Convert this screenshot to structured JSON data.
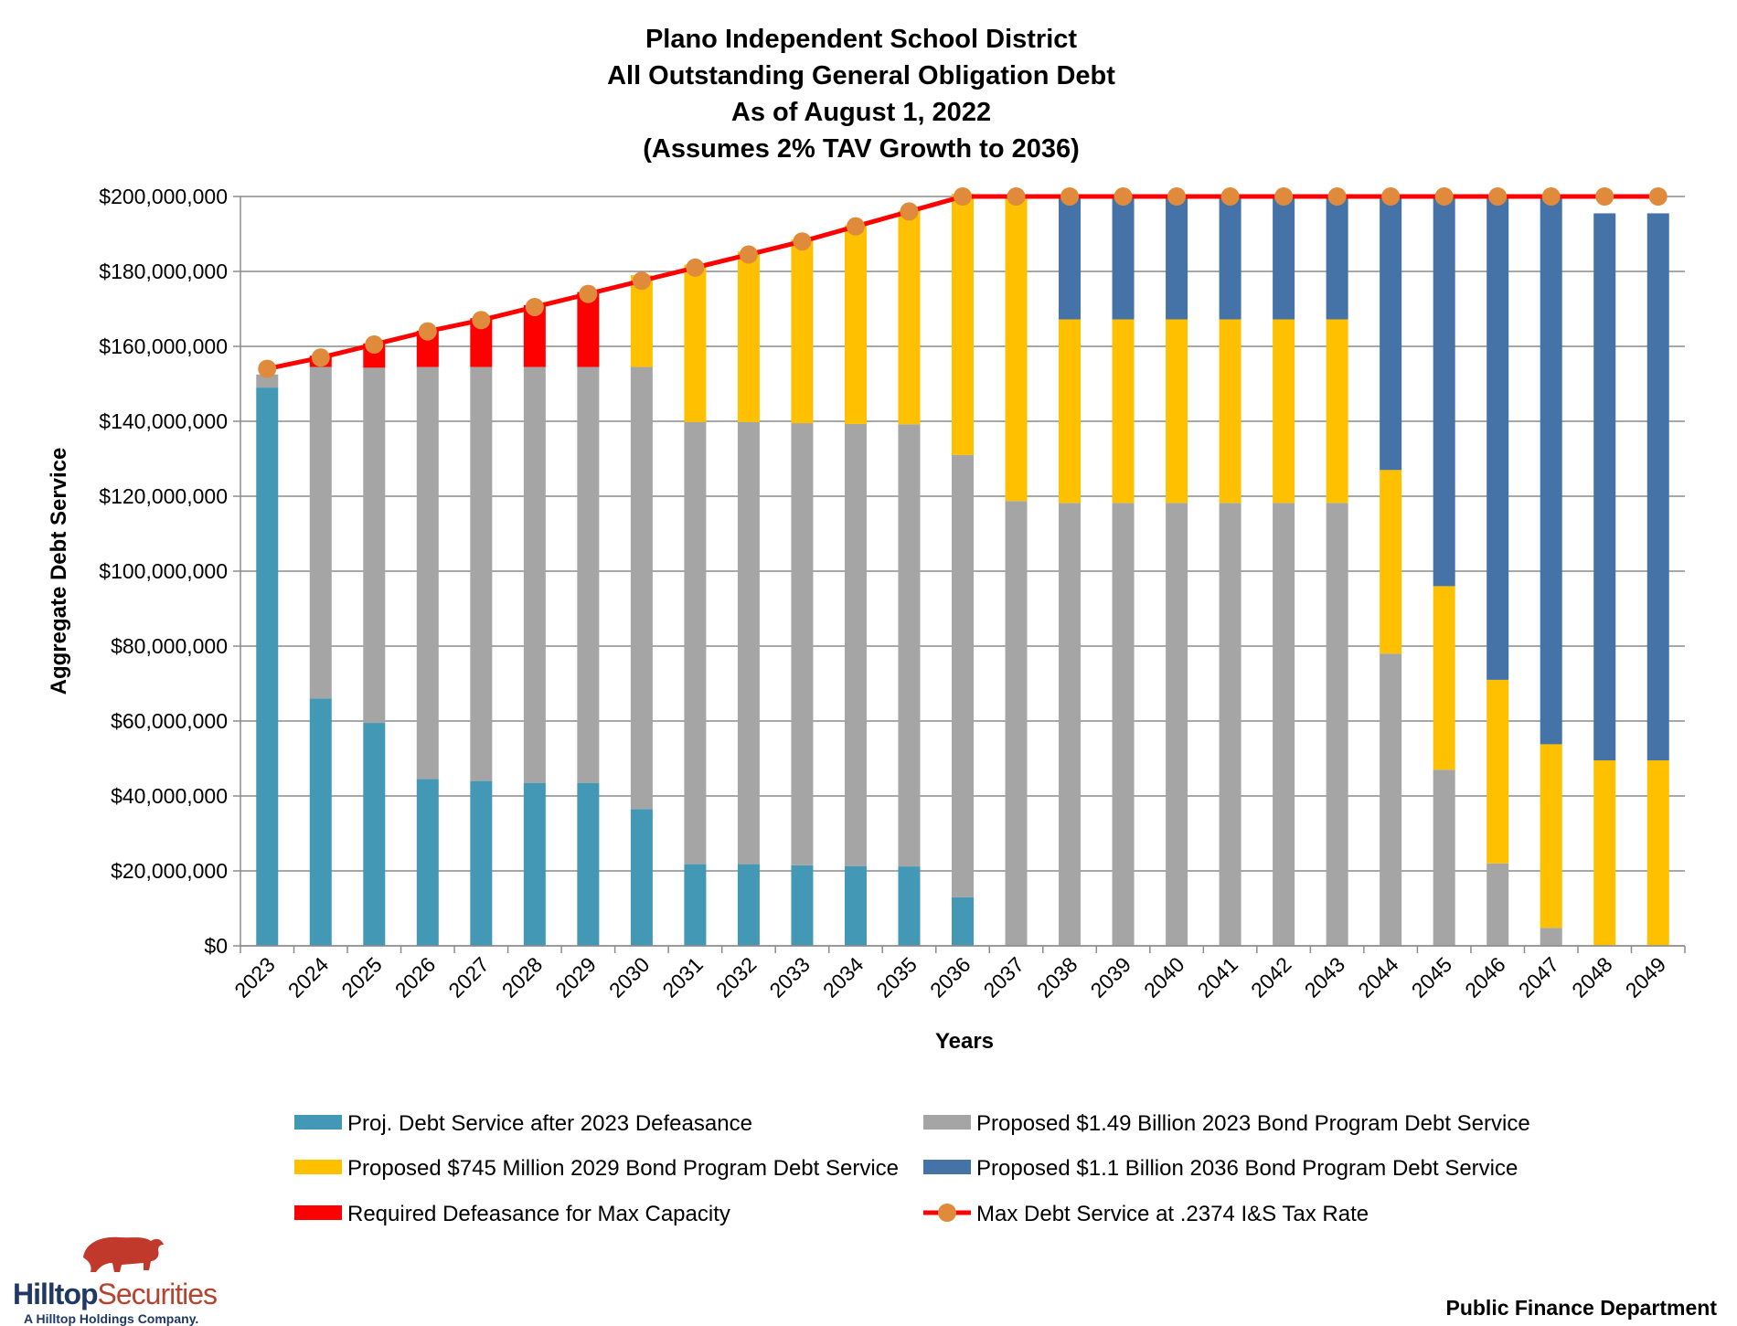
{
  "chart_data": {
    "type": "bar",
    "stacked": true,
    "title": [
      "Plano Independent School District",
      "All Outstanding General Obligation Debt",
      "As of August 1, 2022",
      "(Assumes 2% TAV Growth to 2036)"
    ],
    "xlabel": "Years",
    "ylabel": "Aggregate Debt Service",
    "ylim": [
      0,
      200000000
    ],
    "yticks": [
      {
        "value": 0,
        "label": "$0"
      },
      {
        "value": 20000000,
        "label": "$20,000,000"
      },
      {
        "value": 40000000,
        "label": "$40,000,000"
      },
      {
        "value": 60000000,
        "label": "$60,000,000"
      },
      {
        "value": 80000000,
        "label": "$80,000,000"
      },
      {
        "value": 100000000,
        "label": "$100,000,000"
      },
      {
        "value": 120000000,
        "label": "$120,000,000"
      },
      {
        "value": 140000000,
        "label": "$140,000,000"
      },
      {
        "value": 160000000,
        "label": "$160,000,000"
      },
      {
        "value": 180000000,
        "label": "$180,000,000"
      },
      {
        "value": 200000000,
        "label": "$200,000,000"
      }
    ],
    "grid": true,
    "legend_position": "bottom",
    "categories": [
      "2023",
      "2024",
      "2025",
      "2026",
      "2027",
      "2028",
      "2029",
      "2030",
      "2031",
      "2032",
      "2033",
      "2034",
      "2035",
      "2036",
      "2037",
      "2038",
      "2039",
      "2040",
      "2041",
      "2042",
      "2043",
      "2044",
      "2045",
      "2046",
      "2047",
      "2048",
      "2049"
    ],
    "series": [
      {
        "name": "Proj. Debt Service after 2023 Defeasance",
        "color": "#4399b5",
        "values": [
          149000000,
          66000000,
          59500000,
          44500000,
          44000000,
          43500000,
          43500000,
          36500000,
          21800000,
          21800000,
          21500000,
          21300000,
          21200000,
          13000000,
          0,
          0,
          0,
          0,
          0,
          0,
          0,
          0,
          0,
          0,
          0,
          0,
          0
        ]
      },
      {
        "name": "Proposed $1.49 Billion 2023 Bond Program Debt Service",
        "color": "#a5a5a5",
        "values": [
          3500000,
          88500000,
          94800000,
          110000000,
          110500000,
          111000000,
          111000000,
          118000000,
          118000000,
          118000000,
          118000000,
          118000000,
          118000000,
          118000000,
          118700000,
          118200000,
          118200000,
          118200000,
          118200000,
          118200000,
          118200000,
          78000000,
          47000000,
          22000000,
          4800000,
          0,
          0
        ]
      },
      {
        "name": "Proposed $745 Million 2029 Bond Program Debt Service",
        "color": "#ffc000",
        "values": [
          0,
          0,
          0,
          0,
          0,
          0,
          0,
          24500000,
          42000000,
          45500000,
          49000000,
          53000000,
          57000000,
          69700000,
          81300000,
          49000000,
          49000000,
          49000000,
          49000000,
          49000000,
          49000000,
          49000000,
          49000000,
          49000000,
          49000000,
          49500000,
          49500000
        ]
      },
      {
        "name": "Proposed $1.1 Billion 2036 Bond Program Debt Service",
        "color": "#4572a7",
        "values": [
          0,
          0,
          0,
          0,
          0,
          0,
          0,
          0,
          0,
          0,
          0,
          0,
          0,
          0,
          0,
          32800000,
          32800000,
          32800000,
          32800000,
          32800000,
          32800000,
          73000000,
          104000000,
          129000000,
          146200000,
          146000000,
          146000000
        ]
      },
      {
        "name": "Required Defeasance for Max Capacity",
        "color": "#ff0000",
        "values": [
          0,
          3000000,
          6500000,
          9700000,
          13000000,
          16500000,
          20000000,
          0,
          0,
          0,
          0,
          0,
          0,
          0,
          0,
          0,
          0,
          0,
          0,
          0,
          0,
          0,
          0,
          0,
          0,
          0,
          0
        ]
      }
    ],
    "line": {
      "name": "Max Debt Service at .2374 I&S Tax Rate",
      "color": "#ff0000",
      "marker_color": "#e08a3c",
      "values": [
        154000000,
        157000000,
        160500000,
        164000000,
        167000000,
        170500000,
        174000000,
        177500000,
        181000000,
        184500000,
        188000000,
        192000000,
        196000000,
        200000000,
        200000000,
        200000000,
        200000000,
        200000000,
        200000000,
        200000000,
        200000000,
        200000000,
        200000000,
        200000000,
        200000000,
        200000000,
        200000000
      ]
    },
    "legend_order": [
      0,
      1,
      2,
      3,
      4,
      "line"
    ]
  },
  "footer": {
    "company_name_a": "Hilltop",
    "company_name_b": "Securities",
    "company_tagline": "A Hilltop Holdings Company.",
    "department": "Public Finance Department"
  }
}
